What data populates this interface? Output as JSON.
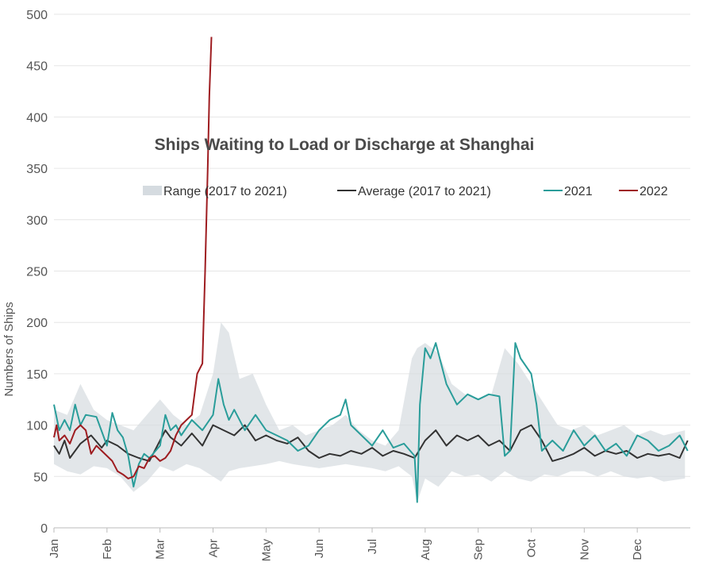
{
  "chart_data": {
    "type": "line",
    "title": "Ships Waiting to Load or Discharge at Shanghai",
    "xlabel": "",
    "ylabel": "Numbers of Ships",
    "ylim": [
      0,
      500
    ],
    "yticks": [
      "0",
      "50",
      "100",
      "150",
      "200",
      "250",
      "300",
      "350",
      "400",
      "450",
      "500"
    ],
    "xticks": [
      "Jan",
      "Feb",
      "Mar",
      "Apr",
      "May",
      "Jun",
      "Jul",
      "Aug",
      "Sep",
      "Oct",
      "Nov",
      "Dec"
    ],
    "grid": "horizontal",
    "legend_position": "top-right",
    "colors": {
      "range": "#d5dbe0",
      "average": "#333333",
      "2021": "#2a9d9a",
      "2022": "#9e1c20"
    },
    "legend": [
      {
        "key": "range",
        "label": "Range (2017 to 2021)"
      },
      {
        "key": "average",
        "label": "Average (2017 to 2021)"
      },
      {
        "key": "2021",
        "label": "2021"
      },
      {
        "key": "2022",
        "label": "2022"
      }
    ],
    "x_unit": "month (1 = Jan 1)",
    "range_band": {
      "name": "Range (2017 to 2021)",
      "x": [
        1.0,
        1.25,
        1.5,
        1.75,
        2.0,
        2.25,
        2.5,
        2.75,
        3.0,
        3.25,
        3.5,
        3.75,
        4.0,
        4.15,
        4.3,
        4.5,
        4.75,
        5.0,
        5.25,
        5.5,
        5.75,
        6.0,
        6.25,
        6.5,
        6.75,
        7.0,
        7.25,
        7.5,
        7.75,
        7.85,
        8.0,
        8.25,
        8.5,
        8.75,
        9.0,
        9.25,
        9.5,
        9.75,
        10.0,
        10.25,
        10.5,
        10.75,
        11.0,
        11.25,
        11.5,
        11.75,
        12.0,
        12.25,
        12.5,
        12.9
      ],
      "low": [
        62,
        55,
        52,
        60,
        58,
        50,
        35,
        45,
        60,
        55,
        62,
        58,
        50,
        45,
        55,
        58,
        60,
        62,
        65,
        62,
        60,
        58,
        60,
        62,
        60,
        58,
        55,
        60,
        50,
        25,
        48,
        40,
        55,
        50,
        52,
        45,
        55,
        48,
        45,
        52,
        50,
        55,
        55,
        50,
        55,
        50,
        48,
        50,
        45,
        48
      ],
      "high": [
        115,
        110,
        140,
        115,
        105,
        100,
        95,
        110,
        125,
        110,
        100,
        110,
        150,
        200,
        190,
        145,
        150,
        120,
        95,
        100,
        90,
        95,
        100,
        110,
        95,
        85,
        80,
        95,
        165,
        175,
        180,
        170,
        140,
        130,
        125,
        130,
        175,
        160,
        140,
        120,
        100,
        95,
        100,
        90,
        95,
        100,
        90,
        95,
        90,
        95
      ]
    },
    "series": [
      {
        "name": "Average (2017 to 2021)",
        "key": "average",
        "x": [
          1.0,
          1.1,
          1.2,
          1.3,
          1.5,
          1.7,
          1.9,
          2.0,
          2.2,
          2.4,
          2.6,
          2.8,
          3.0,
          3.1,
          3.2,
          3.4,
          3.6,
          3.8,
          4.0,
          4.2,
          4.4,
          4.6,
          4.8,
          5.0,
          5.2,
          5.4,
          5.6,
          5.8,
          6.0,
          6.2,
          6.4,
          6.6,
          6.8,
          7.0,
          7.2,
          7.4,
          7.6,
          7.8,
          8.0,
          8.2,
          8.4,
          8.6,
          8.8,
          9.0,
          9.2,
          9.4,
          9.6,
          9.8,
          10.0,
          10.2,
          10.4,
          10.6,
          10.8,
          11.0,
          11.2,
          11.4,
          11.6,
          11.8,
          12.0,
          12.2,
          12.4,
          12.6,
          12.8,
          12.95
        ],
        "y": [
          80,
          72,
          85,
          68,
          82,
          90,
          78,
          85,
          80,
          72,
          68,
          65,
          85,
          95,
          88,
          80,
          92,
          80,
          100,
          95,
          90,
          100,
          85,
          90,
          85,
          82,
          88,
          75,
          68,
          72,
          70,
          75,
          72,
          78,
          70,
          75,
          72,
          68,
          85,
          95,
          80,
          90,
          85,
          90,
          80,
          85,
          75,
          95,
          100,
          85,
          65,
          68,
          72,
          78,
          70,
          75,
          72,
          75,
          68,
          72,
          70,
          72,
          68,
          85
        ]
      },
      {
        "name": "2021",
        "key": "2021",
        "x": [
          1.0,
          1.1,
          1.2,
          1.3,
          1.4,
          1.5,
          1.6,
          1.8,
          2.0,
          2.1,
          2.2,
          2.3,
          2.4,
          2.5,
          2.6,
          2.7,
          2.8,
          3.0,
          3.1,
          3.2,
          3.3,
          3.4,
          3.6,
          3.8,
          4.0,
          4.1,
          4.2,
          4.3,
          4.4,
          4.6,
          4.8,
          5.0,
          5.2,
          5.4,
          5.6,
          5.8,
          6.0,
          6.2,
          6.4,
          6.5,
          6.6,
          6.8,
          7.0,
          7.2,
          7.4,
          7.6,
          7.8,
          7.85,
          7.9,
          8.0,
          8.1,
          8.2,
          8.4,
          8.6,
          8.8,
          9.0,
          9.2,
          9.4,
          9.5,
          9.6,
          9.7,
          9.8,
          10.0,
          10.1,
          10.2,
          10.4,
          10.6,
          10.8,
          11.0,
          11.2,
          11.4,
          11.6,
          11.8,
          12.0,
          12.2,
          12.4,
          12.6,
          12.8,
          12.95
        ],
        "y": [
          120,
          95,
          105,
          95,
          120,
          100,
          110,
          108,
          80,
          112,
          95,
          88,
          70,
          40,
          62,
          72,
          68,
          80,
          110,
          95,
          100,
          90,
          105,
          95,
          110,
          145,
          120,
          105,
          115,
          95,
          110,
          95,
          90,
          85,
          75,
          80,
          95,
          105,
          110,
          125,
          100,
          90,
          80,
          95,
          78,
          82,
          70,
          25,
          120,
          175,
          165,
          180,
          140,
          120,
          130,
          125,
          130,
          128,
          70,
          75,
          180,
          165,
          150,
          120,
          75,
          85,
          75,
          95,
          80,
          90,
          75,
          82,
          70,
          90,
          85,
          75,
          80,
          90,
          75
        ]
      },
      {
        "name": "2022",
        "key": "2022",
        "x": [
          1.0,
          1.05,
          1.1,
          1.2,
          1.3,
          1.4,
          1.5,
          1.6,
          1.7,
          1.8,
          1.9,
          2.0,
          2.1,
          2.2,
          2.3,
          2.4,
          2.5,
          2.6,
          2.7,
          2.8,
          2.9,
          3.0,
          3.1,
          3.2,
          3.3,
          3.4,
          3.5,
          3.6,
          3.7,
          3.8,
          3.85,
          3.9,
          3.93,
          3.97
        ],
        "y": [
          88,
          100,
          85,
          90,
          82,
          95,
          100,
          95,
          72,
          80,
          75,
          70,
          65,
          55,
          52,
          48,
          50,
          60,
          58,
          68,
          70,
          65,
          68,
          75,
          90,
          100,
          105,
          110,
          150,
          160,
          250,
          350,
          420,
          478
        ]
      }
    ]
  }
}
